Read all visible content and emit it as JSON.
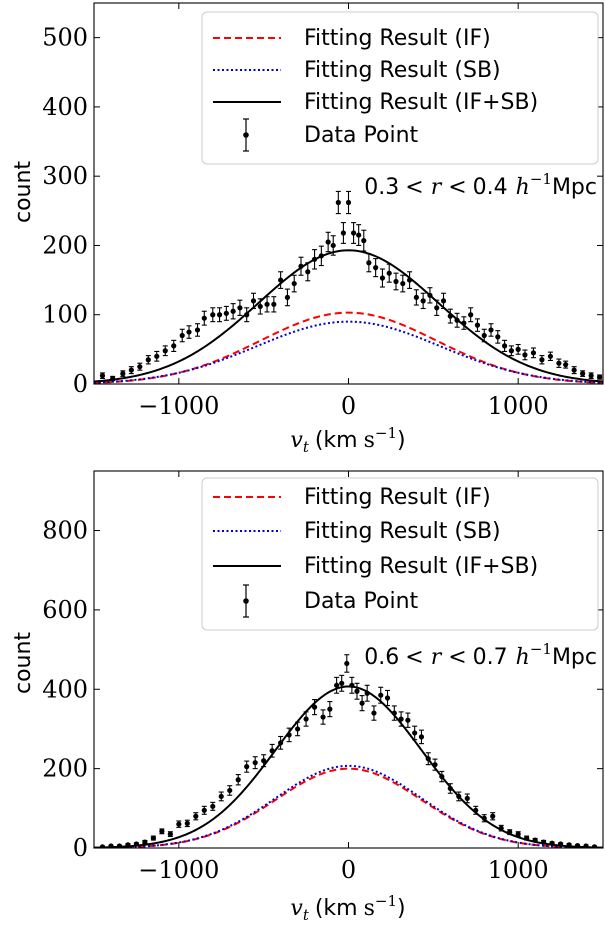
{
  "chart_data": [
    {
      "type": "line",
      "annotation": {
        "prefix": "0.3",
        "middle": "< r <",
        "suffix": "0.4",
        "h": "h",
        "exp": "−1",
        "unit": "Mpc"
      },
      "xlabel": {
        "var": "v",
        "sub": "t",
        "unit_open": "(km",
        "s": "s",
        "exp": "−1",
        "close": ")"
      },
      "ylabel": "count",
      "xlim": [
        -1500,
        1500
      ],
      "ylim": [
        0,
        550
      ],
      "xticks": [
        -1000,
        0,
        1000
      ],
      "xtick_labels": [
        "−1000",
        "0",
        "1000"
      ],
      "yticks": [
        0,
        100,
        200,
        300,
        400,
        500
      ],
      "ytick_labels": [
        "0",
        "100",
        "200",
        "300",
        "400",
        "500"
      ],
      "legend_position": "top-right",
      "grid": false,
      "series": [
        {
          "name": "Fitting Result (IF)",
          "style": "dashed",
          "color": "#ff0000",
          "model": "gaussian",
          "amplitude": 103,
          "sigma": 520
        },
        {
          "name": "Fitting Result (SB)",
          "style": "dotted",
          "color": "#0000cc",
          "model": "gaussian",
          "amplitude": 90,
          "sigma": 540
        },
        {
          "name": "Fitting Result (IF+SB)",
          "style": "solid",
          "color": "#000000",
          "model": "gaussian",
          "amplitude": 193,
          "sigma": 530
        },
        {
          "name": "Data Point",
          "style": "errorbar",
          "color": "#000000",
          "x": [
            -1450,
            -1390,
            -1330,
            -1280,
            -1230,
            -1180,
            -1130,
            -1080,
            -1030,
            -980,
            -940,
            -890,
            -850,
            -800,
            -760,
            -720,
            -680,
            -640,
            -600,
            -560,
            -520,
            -480,
            -440,
            -400,
            -360,
            -320,
            -280,
            -240,
            -200,
            -160,
            -120,
            -90,
            -60,
            -30,
            0,
            30,
            60,
            90,
            120,
            160,
            200,
            240,
            280,
            320,
            360,
            400,
            440,
            480,
            520,
            560,
            600,
            640,
            680,
            720,
            760,
            800,
            840,
            880,
            920,
            960,
            1000,
            1040,
            1090,
            1140,
            1190,
            1240,
            1280,
            1330,
            1380,
            1430,
            1480
          ],
          "y": [
            12,
            8,
            15,
            20,
            25,
            35,
            40,
            48,
            55,
            70,
            75,
            78,
            95,
            100,
            100,
            102,
            105,
            110,
            100,
            120,
            112,
            115,
            115,
            150,
            125,
            145,
            170,
            162,
            180,
            185,
            205,
            200,
            262,
            218,
            262,
            218,
            215,
            207,
            175,
            168,
            153,
            160,
            148,
            145,
            150,
            125,
            120,
            128,
            110,
            120,
            98,
            92,
            88,
            100,
            85,
            70,
            78,
            68,
            55,
            48,
            50,
            42,
            45,
            35,
            40,
            30,
            28,
            20,
            15,
            12,
            10
          ],
          "err": [
            4,
            3,
            4,
            5,
            5,
            6,
            7,
            7,
            8,
            9,
            9,
            9,
            10,
            10,
            10,
            10,
            11,
            11,
            10,
            11,
            11,
            11,
            11,
            12,
            12,
            12,
            13,
            13,
            14,
            14,
            14,
            14,
            16,
            15,
            16,
            15,
            15,
            15,
            13,
            13,
            13,
            13,
            12,
            12,
            12,
            11,
            11,
            11,
            11,
            11,
            10,
            10,
            9,
            10,
            9,
            9,
            9,
            9,
            8,
            7,
            7,
            7,
            7,
            6,
            6,
            6,
            5,
            5,
            4,
            4,
            3
          ]
        }
      ]
    },
    {
      "type": "line",
      "annotation": {
        "prefix": "0.6",
        "middle": "< r <",
        "suffix": "0.7",
        "h": "h",
        "exp": "−1",
        "unit": "Mpc"
      },
      "xlabel": {
        "var": "v",
        "sub": "t",
        "unit_open": "(km",
        "s": "s",
        "exp": "−1",
        "close": ")"
      },
      "ylabel": "count",
      "xlim": [
        -1500,
        1500
      ],
      "ylim": [
        0,
        950
      ],
      "xticks": [
        -1000,
        0,
        1000
      ],
      "xtick_labels": [
        "−1000",
        "0",
        "1000"
      ],
      "yticks": [
        0,
        200,
        400,
        600,
        800
      ],
      "ytick_labels": [
        "0",
        "200",
        "400",
        "600",
        "800"
      ],
      "legend_position": "top-right",
      "grid": false,
      "series": [
        {
          "name": "Fitting Result (IF)",
          "style": "dashed",
          "color": "#ff0000",
          "model": "gaussian",
          "amplitude": 200,
          "sigma": 430
        },
        {
          "name": "Fitting Result (SB)",
          "style": "dotted",
          "color": "#0000cc",
          "model": "gaussian",
          "amplitude": 207,
          "sigma": 430
        },
        {
          "name": "Fitting Result (IF+SB)",
          "style": "solid",
          "color": "#000000",
          "model": "gaussian",
          "amplitude": 407,
          "sigma": 430
        },
        {
          "name": "Data Point",
          "style": "errorbar",
          "color": "#000000",
          "x": [
            -1450,
            -1400,
            -1350,
            -1300,
            -1250,
            -1200,
            -1150,
            -1100,
            -1050,
            -1000,
            -950,
            -900,
            -850,
            -800,
            -750,
            -700,
            -650,
            -600,
            -550,
            -500,
            -450,
            -400,
            -350,
            -300,
            -250,
            -200,
            -150,
            -110,
            -70,
            -40,
            -10,
            20,
            50,
            80,
            110,
            150,
            190,
            230,
            270,
            310,
            350,
            390,
            430,
            470,
            510,
            550,
            600,
            650,
            700,
            750,
            800,
            850,
            900,
            950,
            1000,
            1050,
            1100,
            1150,
            1200,
            1250,
            1300,
            1350,
            1400,
            1450
          ],
          "y": [
            3,
            5,
            5,
            8,
            10,
            15,
            25,
            42,
            35,
            60,
            62,
            80,
            95,
            105,
            130,
            145,
            172,
            205,
            215,
            220,
            245,
            265,
            285,
            300,
            325,
            355,
            330,
            350,
            410,
            415,
            465,
            410,
            395,
            365,
            390,
            340,
            385,
            378,
            340,
            325,
            322,
            290,
            280,
            225,
            210,
            180,
            150,
            130,
            125,
            95,
            75,
            80,
            50,
            40,
            35,
            25,
            20,
            15,
            12,
            10,
            8,
            6,
            5,
            3
          ],
          "err": [
            2,
            2,
            2,
            3,
            3,
            4,
            5,
            6,
            6,
            8,
            8,
            9,
            10,
            10,
            11,
            12,
            13,
            14,
            15,
            15,
            16,
            16,
            17,
            17,
            18,
            19,
            18,
            19,
            20,
            20,
            22,
            20,
            20,
            19,
            20,
            18,
            20,
            19,
            18,
            18,
            18,
            17,
            17,
            15,
            14,
            13,
            12,
            11,
            11,
            10,
            9,
            9,
            7,
            6,
            6,
            5,
            4,
            4,
            3,
            3,
            3,
            2,
            2,
            2
          ]
        }
      ]
    }
  ]
}
